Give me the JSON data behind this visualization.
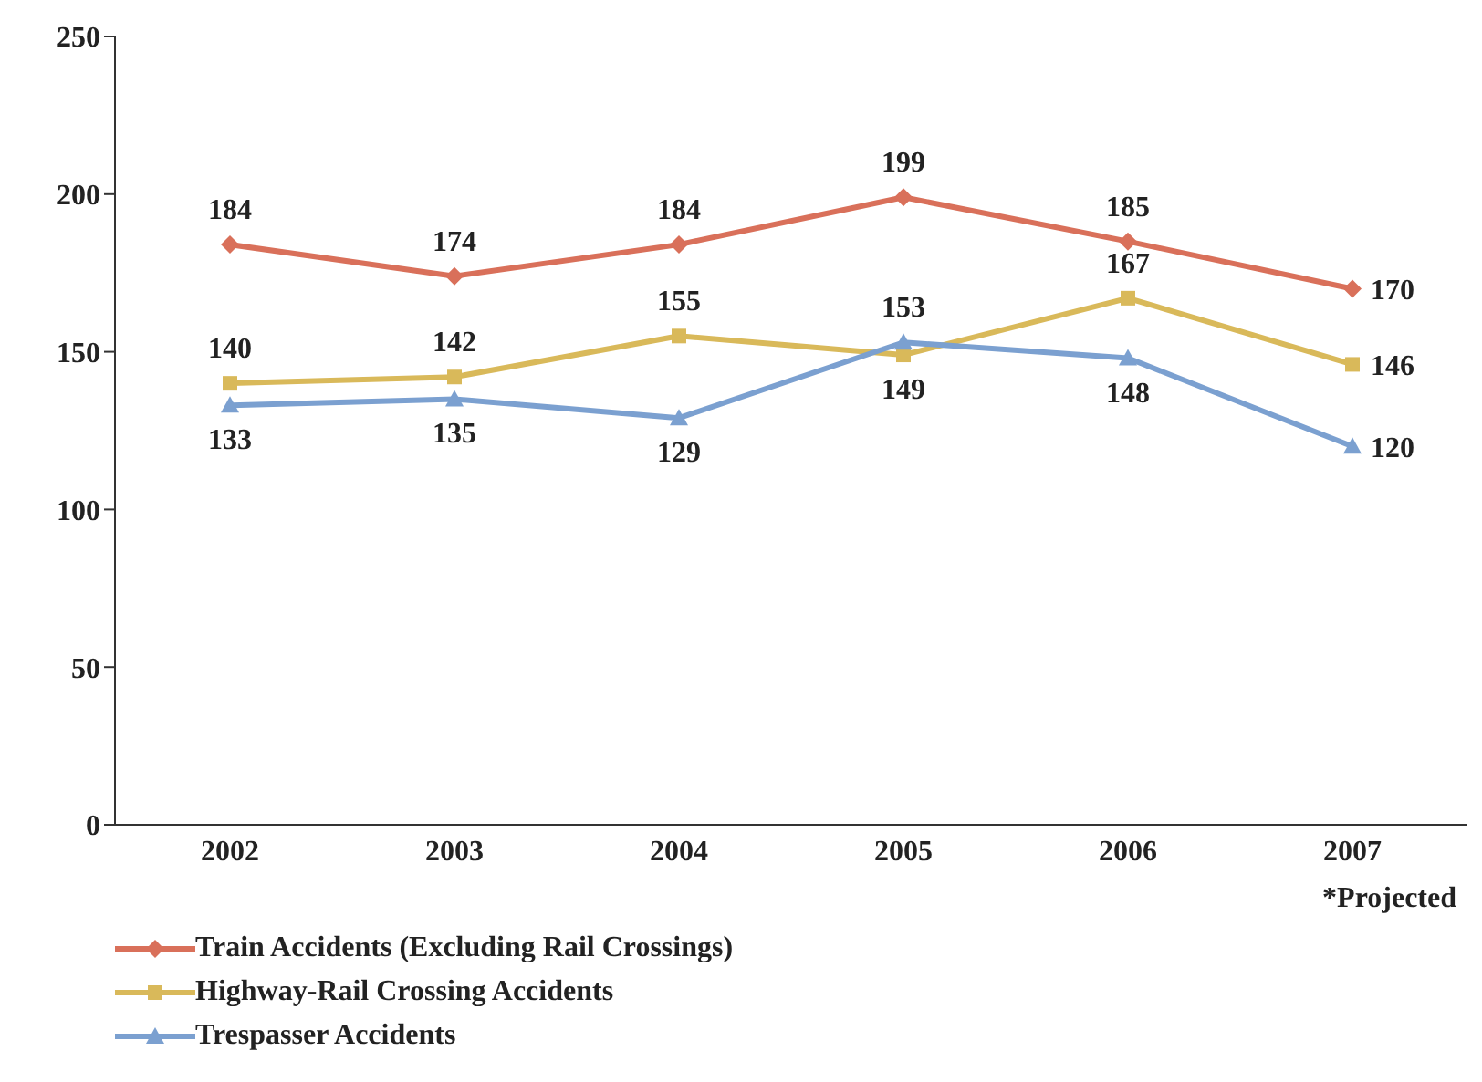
{
  "chart_data": {
    "type": "line",
    "categories": [
      "2002",
      "2003",
      "2004",
      "2005",
      "2006",
      "2007"
    ],
    "series": [
      {
        "name": "Train Accidents (Excluding Rail Crossings)",
        "color": "#d9705a",
        "marker": "diamond",
        "values": [
          184,
          174,
          184,
          199,
          185,
          170
        ]
      },
      {
        "name": "Highway-Rail Crossing Accidents",
        "color": "#d9b95a",
        "marker": "square",
        "values": [
          140,
          142,
          155,
          149,
          167,
          146
        ]
      },
      {
        "name": "Trespasser Accidents",
        "color": "#7ba0d0",
        "marker": "triangle",
        "values": [
          133,
          135,
          129,
          153,
          148,
          120
        ]
      }
    ],
    "ylim": [
      0,
      250
    ],
    "yticks": [
      0,
      50,
      100,
      150,
      200,
      250
    ],
    "legend": "bottom left",
    "data_labels": true,
    "line_style": "solid",
    "annotations": [
      "*Projected"
    ]
  }
}
